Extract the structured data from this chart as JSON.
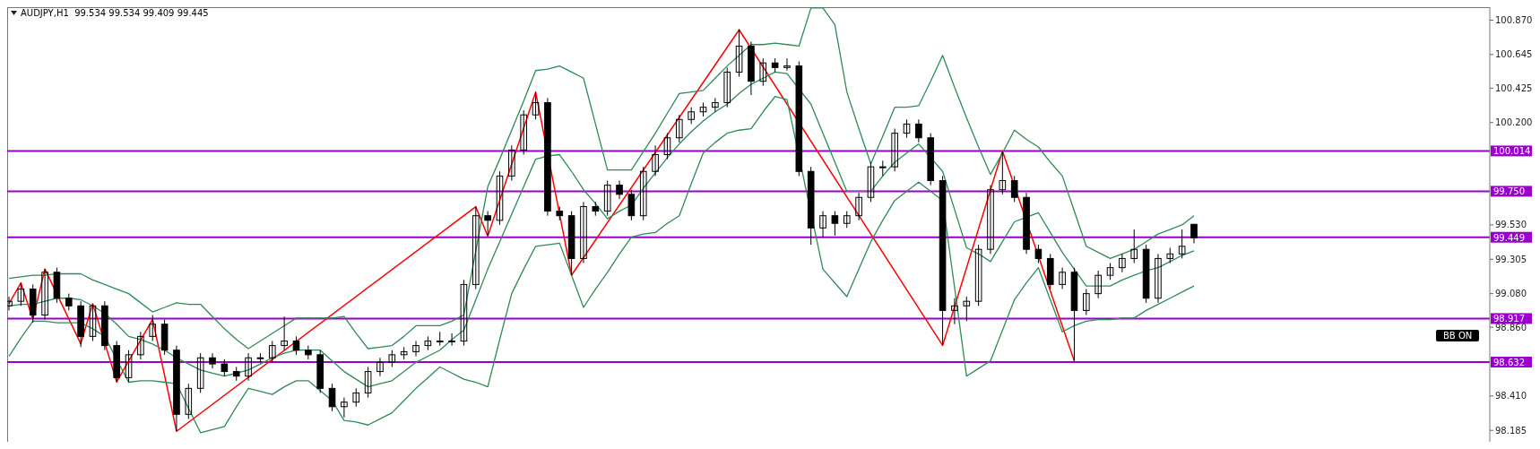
{
  "chart_data": {
    "type": "candlestick",
    "title": "AUDJPY,H1  99.534 99.534 99.409 99.445",
    "annotations": [
      "BB ON"
    ],
    "categories": [
      null,
      null,
      null,
      null,
      null,
      null,
      null,
      null,
      null,
      null,
      null,
      null,
      null,
      null,
      null,
      null,
      null,
      null,
      null,
      null,
      null,
      null,
      null,
      null,
      null,
      null,
      null,
      null,
      null,
      null,
      null,
      null,
      null,
      null,
      null,
      null,
      null,
      null,
      null,
      null,
      null,
      null,
      null,
      null,
      null,
      null,
      null,
      null,
      null,
      null,
      null,
      null,
      null,
      null,
      null,
      null,
      null,
      null,
      null,
      null,
      null,
      null,
      null,
      null,
      null,
      null,
      null,
      null,
      null,
      null,
      null,
      null,
      null,
      null,
      null,
      null,
      null,
      null,
      null,
      null,
      null,
      null,
      null,
      null,
      null,
      null,
      null,
      null,
      null,
      null,
      null,
      null,
      null,
      null,
      null,
      null,
      null,
      null,
      null,
      null
    ],
    "ohlc": [
      [
        99.0,
        99.06,
        98.97,
        99.03
      ],
      [
        99.03,
        99.15,
        99.0,
        99.11
      ],
      [
        99.11,
        99.14,
        98.89,
        98.94
      ],
      [
        98.94,
        99.24,
        98.91,
        99.22
      ],
      [
        99.22,
        99.25,
        99.02,
        99.05
      ],
      [
        99.05,
        99.08,
        98.97,
        99.0
      ],
      [
        99.0,
        99.03,
        98.73,
        98.8
      ],
      [
        98.8,
        99.01,
        98.77,
        99.0
      ],
      [
        99.0,
        99.03,
        98.71,
        98.74
      ],
      [
        98.74,
        98.77,
        98.5,
        98.53
      ],
      [
        98.53,
        98.71,
        98.5,
        98.68
      ],
      [
        98.68,
        98.83,
        98.65,
        98.8
      ],
      [
        98.8,
        98.94,
        98.77,
        98.88
      ],
      [
        98.88,
        98.91,
        98.68,
        98.71
      ],
      [
        98.71,
        98.74,
        98.18,
        98.29
      ],
      [
        98.29,
        98.49,
        98.26,
        98.46
      ],
      [
        98.46,
        98.69,
        98.43,
        98.66
      ],
      [
        98.66,
        98.69,
        98.59,
        98.62
      ],
      [
        98.62,
        98.65,
        98.54,
        98.57
      ],
      [
        98.57,
        98.6,
        98.51,
        98.54
      ],
      [
        98.54,
        98.69,
        98.51,
        98.66
      ],
      [
        98.66,
        98.69,
        98.63,
        98.66
      ],
      [
        98.66,
        98.77,
        98.63,
        98.74
      ],
      [
        98.74,
        98.93,
        98.71,
        98.77
      ],
      [
        98.77,
        98.8,
        98.68,
        98.71
      ],
      [
        98.71,
        98.74,
        98.65,
        98.68
      ],
      [
        98.68,
        98.71,
        98.43,
        98.46
      ],
      [
        98.46,
        98.49,
        98.31,
        98.34
      ],
      [
        98.34,
        98.4,
        98.27,
        98.37
      ],
      [
        98.37,
        98.46,
        98.34,
        98.43
      ],
      [
        98.43,
        98.6,
        98.4,
        98.57
      ],
      [
        98.57,
        98.66,
        98.54,
        98.63
      ],
      [
        98.63,
        98.71,
        98.6,
        98.68
      ],
      [
        98.68,
        98.73,
        98.65,
        98.7
      ],
      [
        98.7,
        98.77,
        98.67,
        98.74
      ],
      [
        98.74,
        98.8,
        98.71,
        98.77
      ],
      [
        98.77,
        98.83,
        98.74,
        98.77
      ],
      [
        98.77,
        98.82,
        98.74,
        98.77
      ],
      [
        98.77,
        99.17,
        98.74,
        99.14
      ],
      [
        99.14,
        99.65,
        99.11,
        99.59
      ],
      [
        99.59,
        99.62,
        99.46,
        99.56
      ],
      [
        99.56,
        99.88,
        99.53,
        99.85
      ],
      [
        99.85,
        100.05,
        99.82,
        100.02
      ],
      [
        100.02,
        100.28,
        99.99,
        100.25
      ],
      [
        100.25,
        100.4,
        100.22,
        100.33
      ],
      [
        100.33,
        100.36,
        99.59,
        99.62
      ],
      [
        99.62,
        99.65,
        99.56,
        99.59
      ],
      [
        99.59,
        99.62,
        99.2,
        99.31
      ],
      [
        99.31,
        99.68,
        99.28,
        99.65
      ],
      [
        99.65,
        99.68,
        99.59,
        99.62
      ],
      [
        99.62,
        99.82,
        99.59,
        99.79
      ],
      [
        99.79,
        99.82,
        99.7,
        99.73
      ],
      [
        99.73,
        99.76,
        99.56,
        99.59
      ],
      [
        99.59,
        99.91,
        99.56,
        99.88
      ],
      [
        99.88,
        100.05,
        99.85,
        99.99
      ],
      [
        99.99,
        100.13,
        99.96,
        100.1
      ],
      [
        100.1,
        100.25,
        100.07,
        100.22
      ],
      [
        100.22,
        100.3,
        100.19,
        100.27
      ],
      [
        100.27,
        100.33,
        100.24,
        100.3
      ],
      [
        100.3,
        100.36,
        100.27,
        100.33
      ],
      [
        100.33,
        100.56,
        100.3,
        100.53
      ],
      [
        100.53,
        100.81,
        100.5,
        100.7
      ],
      [
        100.7,
        100.73,
        100.38,
        100.47
      ],
      [
        100.47,
        100.62,
        100.44,
        100.59
      ],
      [
        100.59,
        100.62,
        100.53,
        100.56
      ],
      [
        100.56,
        100.62,
        100.54,
        100.57
      ],
      [
        100.57,
        100.6,
        99.85,
        99.88
      ],
      [
        99.88,
        99.91,
        99.4,
        99.51
      ],
      [
        99.51,
        99.62,
        99.45,
        99.59
      ],
      [
        99.59,
        99.62,
        99.46,
        99.54
      ],
      [
        99.54,
        99.62,
        99.51,
        99.59
      ],
      [
        99.59,
        99.74,
        99.56,
        99.71
      ],
      [
        99.71,
        99.94,
        99.68,
        99.91
      ],
      [
        99.91,
        99.95,
        99.85,
        99.91
      ],
      [
        99.91,
        100.16,
        99.88,
        100.13
      ],
      [
        100.13,
        100.22,
        100.1,
        100.19
      ],
      [
        100.19,
        100.22,
        100.07,
        100.1
      ],
      [
        100.1,
        100.13,
        99.79,
        99.82
      ],
      [
        99.82,
        99.85,
        98.74,
        98.97
      ],
      [
        98.97,
        99.05,
        98.88,
        99.0
      ],
      [
        99.0,
        99.06,
        98.9,
        99.03
      ],
      [
        99.03,
        99.4,
        99.0,
        99.37
      ],
      [
        99.37,
        99.79,
        99.34,
        99.76
      ],
      [
        99.76,
        100.01,
        99.73,
        99.82
      ],
      [
        99.82,
        99.85,
        99.68,
        99.71
      ],
      [
        99.71,
        99.74,
        99.34,
        99.37
      ],
      [
        99.37,
        99.4,
        99.28,
        99.31
      ],
      [
        99.31,
        99.34,
        99.11,
        99.14
      ],
      [
        99.14,
        99.25,
        99.11,
        99.22
      ],
      [
        99.22,
        99.25,
        98.64,
        98.97
      ],
      [
        98.97,
        99.11,
        98.94,
        99.08
      ],
      [
        99.08,
        99.23,
        99.05,
        99.2
      ],
      [
        99.2,
        99.28,
        99.17,
        99.25
      ],
      [
        99.25,
        99.34,
        99.22,
        99.31
      ],
      [
        99.31,
        99.5,
        99.28,
        99.37
      ],
      [
        99.37,
        99.4,
        99.02,
        99.05
      ],
      [
        99.05,
        99.34,
        99.02,
        99.31
      ],
      [
        99.31,
        99.38,
        99.28,
        99.34
      ],
      [
        99.34,
        99.5,
        99.31,
        99.39
      ],
      [
        99.534,
        99.534,
        99.409,
        99.445
      ]
    ],
    "series": [
      {
        "type": "line",
        "color": "#2e8b57",
        "values": [
          99.18,
          99.19,
          99.2,
          99.2,
          99.21,
          99.21,
          99.21,
          99.17,
          99.14,
          99.11,
          99.08,
          99.02,
          98.96,
          98.99,
          99.02,
          99.01,
          99.01,
          98.93,
          98.85,
          98.78,
          98.72,
          98.77,
          98.82,
          98.87,
          98.92,
          98.92,
          98.92,
          98.92,
          98.93,
          98.82,
          98.72,
          98.73,
          98.74,
          98.8,
          98.87,
          98.87,
          98.87,
          98.9,
          98.94,
          99.36,
          99.78,
          99.96,
          100.15,
          100.34,
          100.54,
          100.55,
          100.57,
          100.53,
          100.49,
          100.19,
          99.89,
          99.89,
          99.89,
          100.01,
          100.13,
          100.26,
          100.39,
          100.4,
          100.41,
          100.49,
          100.57,
          100.64,
          100.71,
          100.71,
          100.72,
          100.71,
          100.7,
          100.95,
          100.95,
          100.84,
          100.4,
          100.16,
          99.93,
          100.11,
          100.3,
          100.3,
          100.31,
          100.47,
          100.64,
          100.43,
          100.23,
          100.04,
          99.86,
          100.0,
          100.15,
          100.09,
          100.04,
          99.94,
          99.85,
          99.62,
          99.39,
          99.35,
          99.31,
          99.34,
          99.37,
          99.42,
          99.47,
          99.5,
          99.53,
          99.59
        ]
      },
      {
        "type": "line",
        "color": "#2e8b57",
        "values": [
          99.0,
          99.01,
          99.01,
          99.03,
          99.05,
          99.05,
          99.04,
          99.0,
          98.95,
          98.88,
          98.8,
          98.78,
          98.75,
          98.71,
          98.66,
          98.62,
          98.58,
          98.56,
          98.54,
          98.56,
          98.58,
          98.62,
          98.66,
          98.69,
          98.71,
          98.71,
          98.71,
          98.64,
          98.57,
          98.52,
          98.47,
          98.49,
          98.51,
          98.57,
          98.63,
          98.67,
          98.71,
          98.78,
          98.84,
          99.04,
          99.24,
          99.42,
          99.6,
          99.78,
          99.96,
          99.98,
          99.99,
          99.88,
          99.76,
          99.67,
          99.57,
          99.62,
          99.66,
          99.77,
          99.87,
          99.97,
          100.06,
          100.14,
          100.21,
          100.27,
          100.32,
          100.39,
          100.45,
          100.49,
          100.53,
          100.52,
          null,
          100.32,
          100.13,
          99.94,
          99.75,
          99.75,
          99.75,
          99.85,
          99.94,
          100.0,
          100.06,
          99.97,
          99.88,
          99.63,
          99.38,
          99.34,
          99.29,
          99.42,
          99.55,
          99.58,
          99.61,
          99.48,
          99.35,
          99.24,
          99.13,
          99.13,
          99.13,
          99.17,
          99.2,
          99.23,
          99.25,
          99.29,
          99.33,
          99.36
        ]
      },
      {
        "type": "line",
        "color": "#2e8b57",
        "values": [
          98.67,
          98.79,
          98.9,
          98.9,
          98.89,
          98.89,
          98.89,
          98.85,
          98.8,
          98.65,
          98.5,
          98.51,
          98.51,
          98.5,
          98.49,
          98.33,
          98.17,
          98.19,
          98.21,
          98.34,
          98.46,
          98.44,
          98.42,
          98.47,
          98.51,
          98.51,
          null,
          98.38,
          98.25,
          98.24,
          98.22,
          98.26,
          98.3,
          98.38,
          98.46,
          98.53,
          98.6,
          98.56,
          98.52,
          98.5,
          98.47,
          98.78,
          99.08,
          99.24,
          99.39,
          99.4,
          99.41,
          99.2,
          98.99,
          99.11,
          99.22,
          99.34,
          99.45,
          99.47,
          99.48,
          99.54,
          99.59,
          99.8,
          100.0,
          100.07,
          100.13,
          100.15,
          100.16,
          100.27,
          100.37,
          100.35,
          null,
          null,
          99.24,
          99.15,
          99.06,
          99.24,
          99.42,
          99.56,
          99.69,
          99.75,
          99.81,
          99.75,
          99.69,
          99.12,
          98.54,
          98.59,
          98.64,
          98.84,
          99.04,
          99.15,
          99.25,
          99.04,
          98.83,
          98.87,
          98.9,
          98.91,
          98.91,
          98.92,
          98.92,
          98.97,
          99.01,
          99.05,
          99.09,
          99.13
        ]
      },
      {
        "type": "line",
        "color": "#ff0000",
        "values": [
          99.014,
          99.15,
          98.911,
          99.241,
          null,
          null,
          98.752,
          99.014,
          null,
          98.503,
          null,
          null,
          98.911,
          null,
          98.179,
          null,
          null,
          null,
          null,
          null,
          null,
          null,
          null,
          null,
          null,
          null,
          null,
          null,
          null,
          null,
          null,
          null,
          null,
          null,
          null,
          null,
          null,
          null,
          null,
          99.649,
          99.456,
          null,
          null,
          null,
          100.399,
          null,
          null,
          99.201,
          null,
          null,
          null,
          null,
          null,
          null,
          null,
          null,
          null,
          null,
          null,
          null,
          null,
          100.807,
          null,
          null,
          null,
          null,
          null,
          null,
          null,
          null,
          null,
          null,
          null,
          null,
          null,
          null,
          null,
          null,
          98.741,
          null,
          null,
          null,
          null,
          100.013,
          null,
          null,
          null,
          null,
          null,
          98.639,
          null,
          null,
          null,
          null,
          null,
          null,
          null,
          null,
          null,
          null
        ]
      }
    ],
    "ref_lines": [
      {
        "axis": "y",
        "value": 100.014,
        "label": "100.014",
        "color": "#9900cc"
      },
      {
        "axis": "y",
        "value": 99.75,
        "label": "99.750",
        "color": "#9900cc"
      },
      {
        "axis": "y",
        "value": 99.449,
        "label": "99.449",
        "color": "#9900cc"
      },
      {
        "axis": "y",
        "value": 98.917,
        "label": "98.917",
        "color": "#9900cc"
      },
      {
        "axis": "y",
        "value": 98.632,
        "label": "98.632",
        "color": "#9900cc"
      }
    ],
    "ylim": [
      98.11,
      100.955
    ],
    "yticks": [
      {
        "value": 100.87,
        "label": "100.870"
      },
      100.645,
      100.425,
      {
        "value": 100.2,
        "label": "100.200"
      },
      {
        "value": 99.53,
        "label": "99.530"
      },
      99.305,
      {
        "value": 99.08,
        "label": "99.080"
      },
      {
        "value": 98.86,
        "label": "98.860"
      },
      {
        "value": 98.41,
        "label": "98.410"
      },
      98.185
    ],
    "tick_labels": "y",
    "marker": "none"
  }
}
